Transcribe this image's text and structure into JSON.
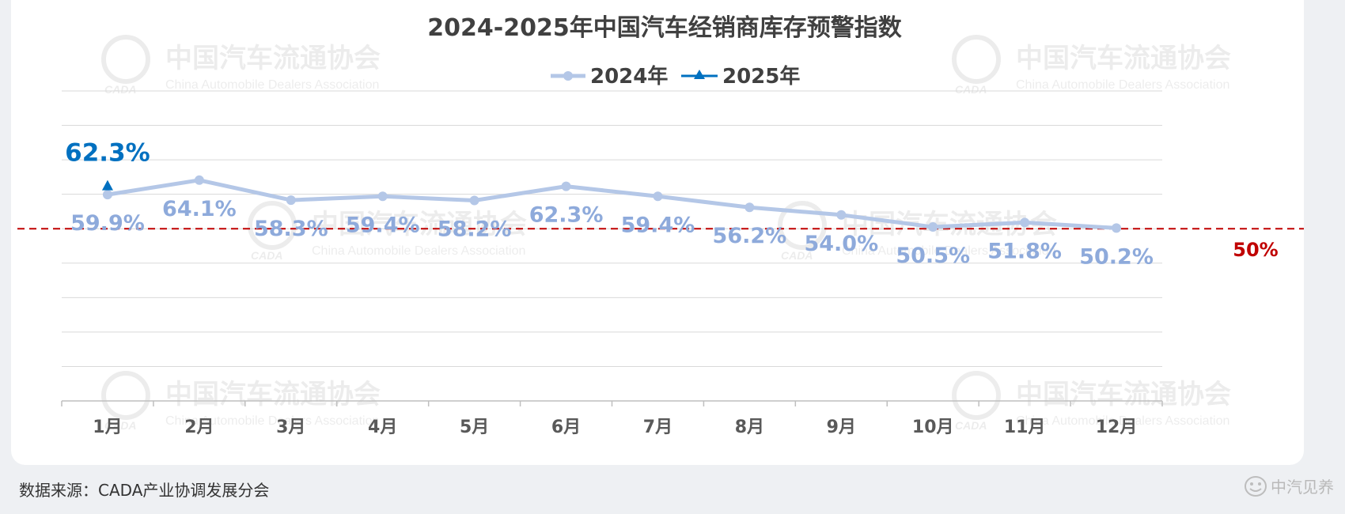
{
  "watermark": {
    "cn": "中国汽车流通协会",
    "en": "China Automobile Dealers Association",
    "logo": "CADA"
  },
  "footer": {
    "source": "数据来源：CADA产业协调发展分会",
    "brand": "中汽见养"
  },
  "colors": {
    "series_2024": "#b4c7e7",
    "label_2024": "#8eaadb",
    "series_2025": "#0070c0",
    "threshold": "#c00000",
    "grid": "#d9d9d9",
    "title": "#404040",
    "axis_text": "#595959"
  },
  "chart_data": {
    "type": "line",
    "title": "2024-2025年中国汽车经销商库存预警指数",
    "categories": [
      "1月",
      "2月",
      "3月",
      "4月",
      "5月",
      "6月",
      "7月",
      "8月",
      "9月",
      "10月",
      "11月",
      "12月"
    ],
    "series": [
      {
        "name": "2024年",
        "marker": "circle",
        "values": [
          59.9,
          64.1,
          58.3,
          59.4,
          58.2,
          62.3,
          59.4,
          56.2,
          54.0,
          50.5,
          51.8,
          50.2
        ],
        "labels": [
          "59.9%",
          "64.1%",
          "58.3%",
          "59.4%",
          "58.2%",
          "62.3%",
          "59.4%",
          "56.2%",
          "54.0%",
          "50.5%",
          "51.8%",
          "50.2%"
        ]
      },
      {
        "name": "2025年",
        "marker": "triangle",
        "values": [
          62.3,
          null,
          null,
          null,
          null,
          null,
          null,
          null,
          null,
          null,
          null,
          null
        ],
        "labels": [
          "62.3%",
          "",
          "",
          "",
          "",
          "",
          "",
          "",
          "",
          "",
          "",
          ""
        ]
      }
    ],
    "threshold": {
      "value": 50,
      "label": "50%"
    },
    "ylim": [
      0,
      90
    ],
    "grid": true,
    "legend_position": "top-center"
  }
}
